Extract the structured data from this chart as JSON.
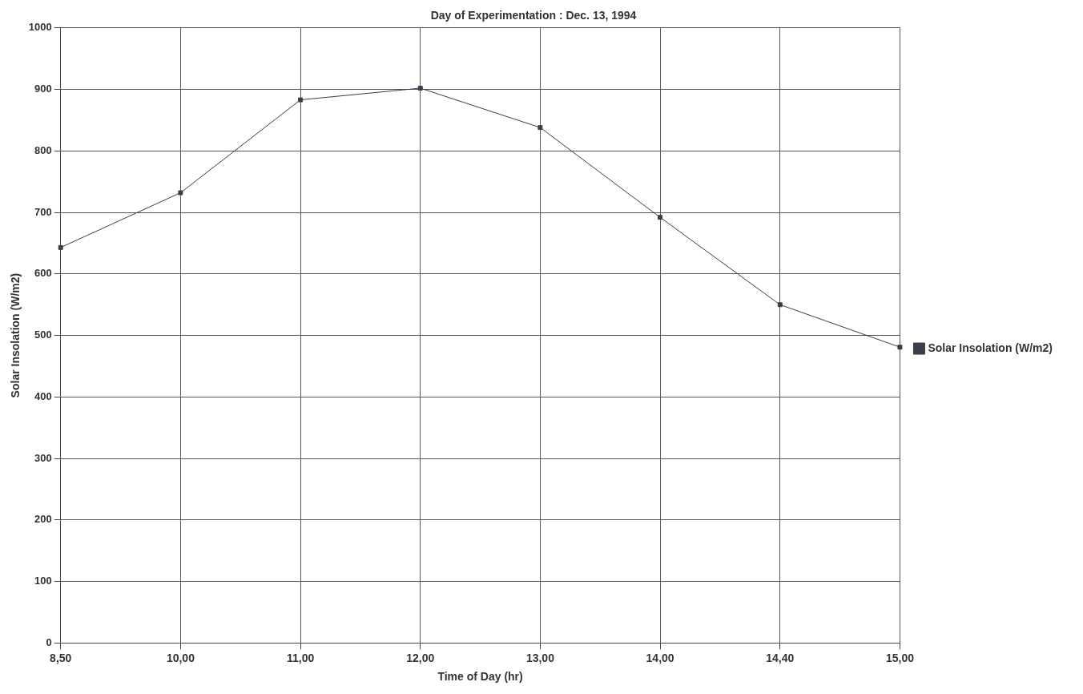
{
  "chart_data": {
    "type": "line",
    "title": "Day of Experimentation : Dec. 13, 1994",
    "xlabel": "Time of Day (hr)",
    "ylabel": "Solar Insolation (W/m2)",
    "categories": [
      "8,50",
      "10,00",
      "11,00",
      "12,00",
      "13,00",
      "14,00",
      "14,40",
      "15,00"
    ],
    "series": [
      {
        "name": "Solar Insolation (W/m2)",
        "color": "#3a3d4a",
        "values": [
          643,
          732,
          883,
          902,
          838,
          692,
          550,
          481
        ]
      }
    ],
    "ylim": [
      0,
      1000
    ],
    "yticks": [
      0,
      100,
      200,
      300,
      400,
      500,
      600,
      700,
      800,
      900,
      1000
    ],
    "grid": true,
    "legend": "right",
    "marker": "square",
    "line_style": "solid"
  }
}
